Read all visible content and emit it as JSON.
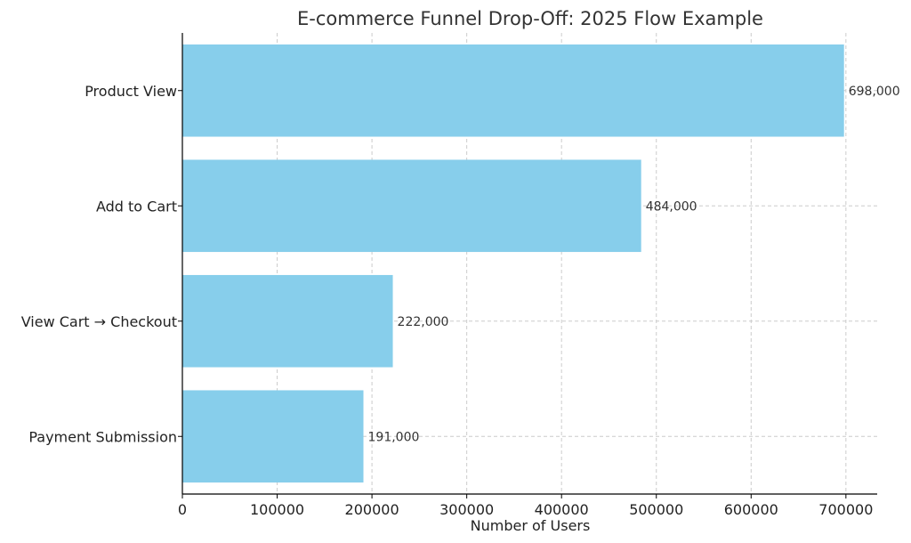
{
  "chart_data": {
    "type": "bar",
    "orientation": "horizontal",
    "title": "E-commerce Funnel Drop-Off: 2025 Flow Example",
    "xlabel": "Number of Users",
    "ylabel": "",
    "categories": [
      "Product View",
      "Add to Cart",
      "View Cart → Checkout",
      "Payment Submission"
    ],
    "values": [
      698000,
      484000,
      222000,
      191000
    ],
    "data_labels": [
      "698,000",
      "484,000",
      "222,000",
      "191,000"
    ],
    "xlim": [
      0,
      733000
    ],
    "x_ticks": [
      0,
      100000,
      200000,
      300000,
      400000,
      500000,
      600000,
      700000
    ],
    "x_tick_labels": [
      "0",
      "100000",
      "200000",
      "300000",
      "400000",
      "500000",
      "600000",
      "700000"
    ],
    "grid": true,
    "bar_color": "#87CEEB"
  }
}
